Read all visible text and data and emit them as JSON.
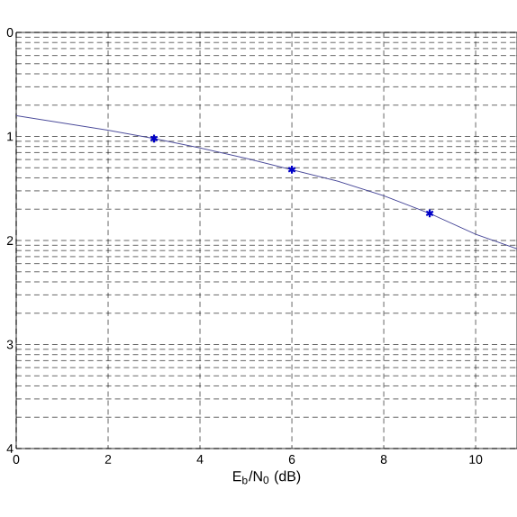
{
  "chart_data": {
    "type": "line",
    "xlabel": "E$_{b}$/N$_{0}$ (dB)",
    "grid": true,
    "line_style": "solid",
    "xlim": [
      0,
      10.9
    ],
    "xticks": [
      0,
      2,
      4,
      6,
      8,
      10
    ],
    "ylim": [
      4,
      0
    ],
    "yticks": [
      0,
      {
        "value": 0.046,
        "label": null
      },
      {
        "value": 0.097,
        "label": null
      },
      {
        "value": 0.155,
        "label": null
      },
      {
        "value": 0.222,
        "label": null
      },
      {
        "value": 0.301,
        "label": null
      },
      {
        "value": 0.398,
        "label": null
      },
      {
        "value": 0.523,
        "label": null
      },
      {
        "value": 0.699,
        "label": null
      },
      1,
      {
        "value": 1.046,
        "label": null
      },
      {
        "value": 1.097,
        "label": null
      },
      {
        "value": 1.155,
        "label": null
      },
      {
        "value": 1.222,
        "label": null
      },
      {
        "value": 1.301,
        "label": null
      },
      {
        "value": 1.398,
        "label": null
      },
      {
        "value": 1.523,
        "label": null
      },
      {
        "value": 1.699,
        "label": null
      },
      2,
      {
        "value": 2.046,
        "label": null
      },
      {
        "value": 2.097,
        "label": null
      },
      {
        "value": 2.155,
        "label": null
      },
      {
        "value": 2.222,
        "label": null
      },
      {
        "value": 2.301,
        "label": null
      },
      {
        "value": 2.398,
        "label": null
      },
      {
        "value": 2.523,
        "label": null
      },
      {
        "value": 2.699,
        "label": null
      },
      3,
      {
        "value": 3.046,
        "label": null
      },
      {
        "value": 3.097,
        "label": null
      },
      {
        "value": 3.155,
        "label": null
      },
      {
        "value": 3.222,
        "label": null
      },
      {
        "value": 3.301,
        "label": null
      },
      {
        "value": 3.398,
        "label": null
      },
      {
        "value": 3.523,
        "label": null
      },
      {
        "value": 3.699,
        "label": null
      },
      4
    ],
    "series": [
      {
        "marker": "none",
        "color": "#4a4a9a",
        "x": [
          0,
          1,
          2,
          3,
          4,
          5,
          6,
          7,
          8,
          9,
          10,
          10.9
        ],
        "values": [
          0.8,
          0.87,
          0.94,
          1.02,
          1.11,
          1.21,
          1.32,
          1.43,
          1.57,
          1.74,
          1.94,
          2.08
        ]
      },
      {
        "type": "scatter",
        "marker": "cross",
        "color": "#0000c8",
        "x": [
          3,
          6,
          9
        ],
        "values": [
          1.02,
          1.32,
          1.74
        ]
      }
    ]
  }
}
